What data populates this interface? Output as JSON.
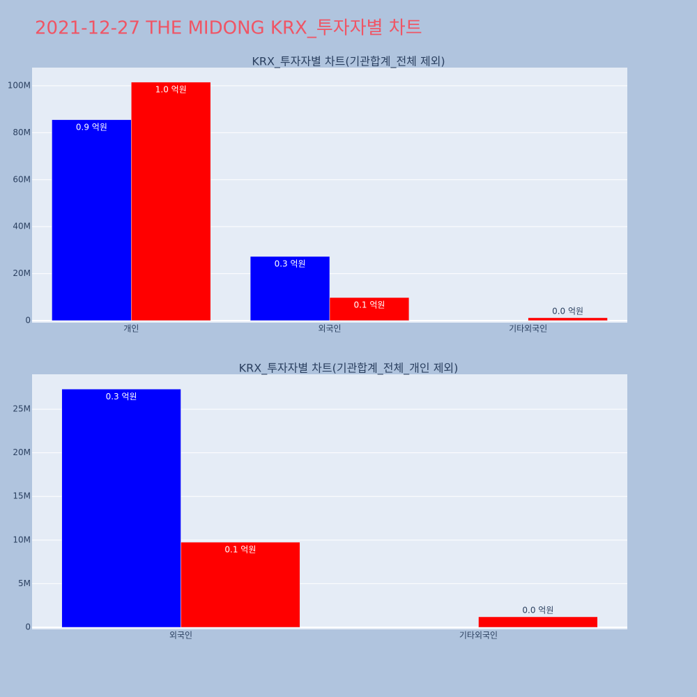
{
  "title": "2021-12-27 THE MIDONG KRX_투자자별 차트",
  "chart_data": [
    {
      "type": "bar",
      "title": "KRX_투자자별 차트(기관합계_전체 제외)",
      "categories": [
        "개인",
        "외국인",
        "기타외국인"
      ],
      "series": [
        {
          "color": "#0000ff",
          "values": [
            85500000,
            27300000,
            null
          ],
          "value_labels": [
            "0.9 억원",
            "0.3 억원",
            null
          ]
        },
        {
          "color": "#ff0000",
          "values": [
            101500000,
            9800000,
            1200000
          ],
          "value_labels": [
            "1.0 억원",
            "0.1 억원",
            "0.0 억원"
          ]
        }
      ],
      "ylim": [
        -900000,
        107700000
      ],
      "yticks": [
        0,
        {
          "value": 20000000,
          "label": "20M"
        },
        {
          "value": 40000000,
          "label": "40M"
        },
        {
          "value": 60000000,
          "label": "60M"
        },
        {
          "value": 80000000,
          "label": "80M"
        },
        {
          "value": 100000000,
          "label": "100M"
        }
      ],
      "grid": true
    },
    {
      "type": "bar",
      "title": "KRX_투자자별 차트(기관합계_전체_개인 제외)",
      "categories": [
        "외국인",
        "기타외국인"
      ],
      "series": [
        {
          "color": "#0000ff",
          "values": [
            27300000,
            null
          ],
          "value_labels": [
            "0.3 억원",
            null
          ]
        },
        {
          "color": "#ff0000",
          "values": [
            9750000,
            1200000
          ],
          "value_labels": [
            "0.1 억원",
            "0.0 억원"
          ]
        }
      ],
      "ylim": [
        -240000,
        29000000
      ],
      "yticks": [
        0,
        {
          "value": 5000000,
          "label": "5M"
        },
        {
          "value": 10000000,
          "label": "10M"
        },
        {
          "value": 15000000,
          "label": "15M"
        },
        {
          "value": 20000000,
          "label": "20M"
        },
        {
          "value": 25000000,
          "label": "25M"
        }
      ],
      "grid": true
    }
  ]
}
